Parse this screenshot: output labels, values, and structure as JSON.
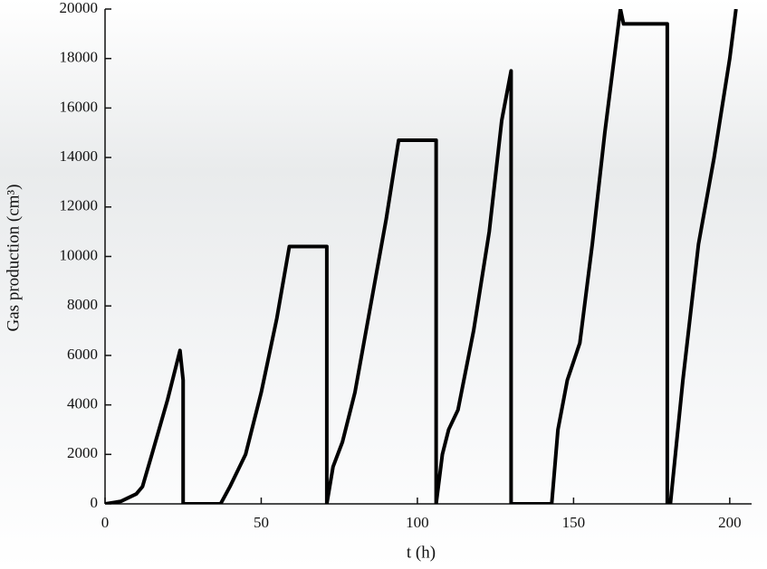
{
  "chart_data": {
    "type": "line",
    "x_label": "t (h)",
    "y_label": "Gas production (cm³)",
    "x": [
      0,
      5,
      10,
      12,
      15,
      20,
      24,
      25,
      25,
      37,
      40,
      45,
      50,
      55,
      59,
      71,
      71,
      73,
      76,
      80,
      85,
      90,
      94,
      106,
      106,
      108,
      110,
      113,
      118,
      123,
      127,
      130,
      130,
      143,
      145,
      148,
      152,
      156,
      160,
      165,
      166,
      180,
      180,
      181,
      185,
      190,
      195,
      200,
      202
    ],
    "series": [
      {
        "name": "Gas production",
        "color": "#000000",
        "values": [
          0,
          100,
          400,
          700,
          2000,
          4200,
          6200,
          5000,
          0,
          0,
          700,
          2000,
          4500,
          7500,
          10400,
          10400,
          0,
          1500,
          2500,
          4500,
          8000,
          11500,
          14700,
          14700,
          0,
          2000,
          3000,
          3800,
          7000,
          11000,
          15500,
          17500,
          0,
          0,
          3000,
          5000,
          6500,
          10500,
          15000,
          20000,
          19400,
          19400,
          0,
          0,
          5000,
          10500,
          14000,
          18000,
          20000
        ]
      }
    ],
    "xlim": [
      0,
      207
    ],
    "ylim": [
      0,
      20000
    ],
    "xticks": [
      0,
      50,
      100,
      150,
      200
    ],
    "yticks": [
      0,
      2000,
      4000,
      6000,
      8000,
      10000,
      12000,
      14000,
      16000,
      18000,
      20000
    ]
  }
}
